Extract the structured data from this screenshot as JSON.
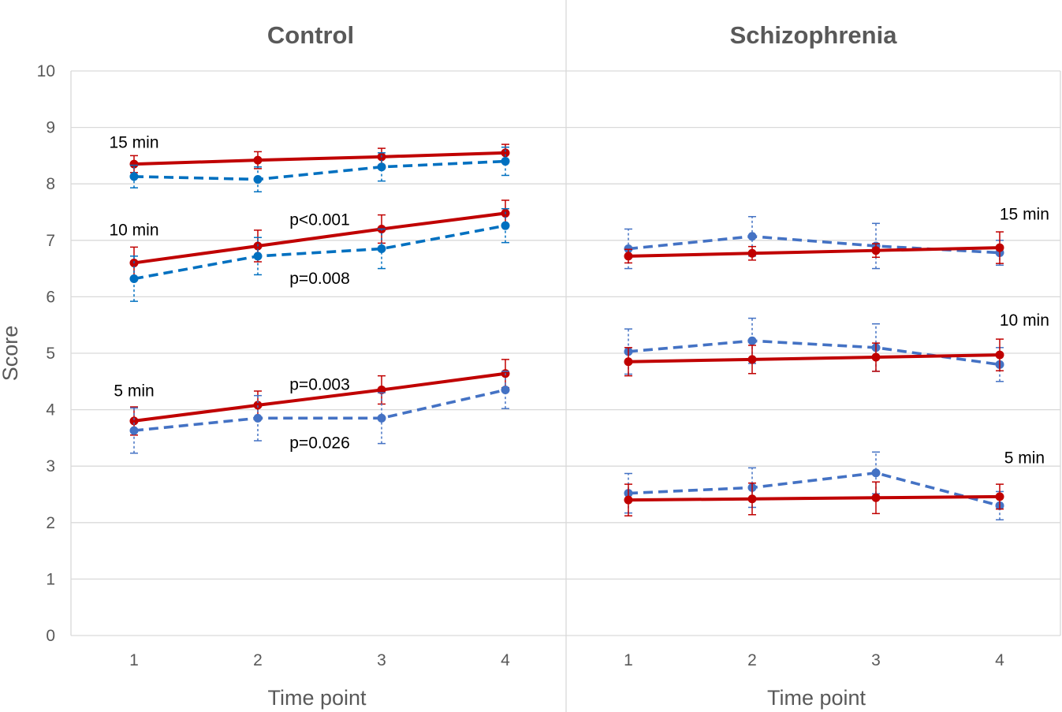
{
  "chart_data": {
    "type": "line",
    "ylabel": "Score",
    "ylim": [
      0,
      10
    ],
    "y_ticks": [
      "0",
      "1",
      "2",
      "3",
      "4",
      "5",
      "6",
      "7",
      "8",
      "9",
      "10"
    ],
    "x_ticks": [
      "1",
      "2",
      "3",
      "4"
    ],
    "grid": true,
    "colors": {
      "solid": "#C00000",
      "dashed": "#4472C4",
      "dashed_dark": "#0070C0"
    },
    "panels": [
      {
        "title": "Control",
        "xlabel": "Time point",
        "series": [
          {
            "name": "15 min solid",
            "style": "solid",
            "values": [
              8.35,
              8.42,
              8.48,
              8.55
            ],
            "errors": [
              0.15,
              0.15,
              0.15,
              0.15
            ]
          },
          {
            "name": "15 min dashed",
            "style": "dashed-dark",
            "values": [
              8.13,
              8.08,
              8.3,
              8.4
            ],
            "errors": [
              0.2,
              0.22,
              0.25,
              0.25
            ]
          },
          {
            "name": "10 min solid",
            "style": "solid",
            "values": [
              6.6,
              6.9,
              7.2,
              7.48
            ],
            "errors": [
              0.28,
              0.28,
              0.25,
              0.23
            ]
          },
          {
            "name": "10 min dashed",
            "style": "dashed-dark",
            "values": [
              6.32,
              6.72,
              6.85,
              7.26
            ],
            "errors": [
              0.4,
              0.33,
              0.35,
              0.3
            ]
          },
          {
            "name": "5 min solid",
            "style": "solid",
            "values": [
              3.8,
              4.08,
              4.35,
              4.64
            ],
            "errors": [
              0.25,
              0.25,
              0.25,
              0.25
            ]
          },
          {
            "name": "5 min dashed",
            "style": "dashed",
            "values": [
              3.63,
              3.85,
              3.85,
              4.35
            ],
            "errors": [
              0.4,
              0.4,
              0.45,
              0.33
            ]
          }
        ],
        "annotations": [
          {
            "text": "15 min",
            "x": 1,
            "y": 8.75
          },
          {
            "text": "10 min",
            "x": 1,
            "y": 7.2
          },
          {
            "text": "p<0.001",
            "x": 2.5,
            "y": 7.38
          },
          {
            "text": "p=0.008",
            "x": 2.5,
            "y": 6.34
          },
          {
            "text": "5 min",
            "x": 1,
            "y": 4.35
          },
          {
            "text": "p=0.003",
            "x": 2.5,
            "y": 4.46
          },
          {
            "text": "p=0.026",
            "x": 2.5,
            "y": 3.43
          }
        ]
      },
      {
        "title": "Schizophrenia",
        "xlabel": "Time point",
        "series": [
          {
            "name": "15 min dashed",
            "style": "dashed",
            "values": [
              6.85,
              7.07,
              6.9,
              6.78
            ],
            "errors": [
              0.35,
              0.35,
              0.4,
              0.22
            ]
          },
          {
            "name": "15 min solid",
            "style": "solid",
            "values": [
              6.72,
              6.77,
              6.82,
              6.87
            ],
            "errors": [
              0.12,
              0.12,
              0.12,
              0.28
            ]
          },
          {
            "name": "10 min dashed",
            "style": "dashed",
            "values": [
              5.03,
              5.22,
              5.1,
              4.8
            ],
            "errors": [
              0.4,
              0.4,
              0.42,
              0.3
            ]
          },
          {
            "name": "10 min solid",
            "style": "solid",
            "values": [
              4.85,
              4.89,
              4.93,
              4.97
            ],
            "errors": [
              0.25,
              0.25,
              0.25,
              0.28
            ]
          },
          {
            "name": "5 min dashed",
            "style": "dashed",
            "values": [
              2.52,
              2.62,
              2.88,
              2.3
            ],
            "errors": [
              0.35,
              0.35,
              0.37,
              0.25
            ]
          },
          {
            "name": "5 min solid",
            "style": "solid",
            "values": [
              2.4,
              2.42,
              2.44,
              2.46
            ],
            "errors": [
              0.28,
              0.28,
              0.28,
              0.22
            ]
          }
        ],
        "annotations": [
          {
            "text": "15 min",
            "x": 4.2,
            "y": 7.48
          },
          {
            "text": "10 min",
            "x": 4.2,
            "y": 5.6
          },
          {
            "text": "5 min",
            "x": 4.2,
            "y": 3.16
          }
        ]
      }
    ]
  }
}
